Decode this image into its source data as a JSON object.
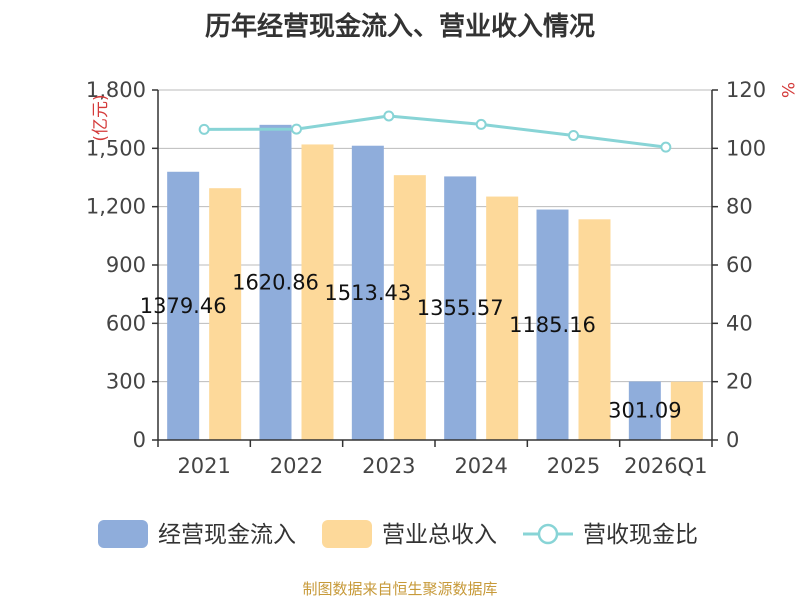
{
  "chart_data": {
    "type": "bar",
    "title": "历年经营现金流入、营业收入情况",
    "categories": [
      "2021",
      "2022",
      "2023",
      "2024",
      "2025",
      "2026Q1"
    ],
    "series": [
      {
        "name": "经营现金流入",
        "type": "bar",
        "axis": "left",
        "color": "#8faddb",
        "values": [
          1379.46,
          1620.86,
          1513.43,
          1355.57,
          1185.16,
          301.09
        ],
        "labels": [
          "1379.46",
          "1620.86",
          "1513.43",
          "1355.57",
          "1185.16",
          "301.09"
        ]
      },
      {
        "name": "营业总收入",
        "type": "bar",
        "axis": "left",
        "color": "#fdd99a",
        "values": [
          1295,
          1520,
          1362,
          1252,
          1135,
          300
        ]
      },
      {
        "name": "营收现金比",
        "type": "line",
        "axis": "right",
        "color": "#88d4d6",
        "values": [
          106.5,
          106.6,
          111.1,
          108.2,
          104.4,
          100.4
        ]
      }
    ],
    "y_left": {
      "label": "(亿元)",
      "min": 0,
      "max": 1800,
      "ticks": [
        0,
        300,
        600,
        900,
        1200,
        1500,
        1800
      ],
      "tick_labels": [
        "0",
        "300",
        "600",
        "900",
        "1,200",
        "1,500",
        "1,800"
      ]
    },
    "y_right": {
      "label": "%",
      "min": 0,
      "max": 120,
      "ticks": [
        0,
        20,
        40,
        60,
        80,
        100,
        120
      ],
      "tick_labels": [
        "0",
        "20",
        "40",
        "60",
        "80",
        "100",
        "120"
      ]
    },
    "grid": true,
    "legend_position": "bottom"
  },
  "source": "制图数据来自恒生聚源数据库"
}
